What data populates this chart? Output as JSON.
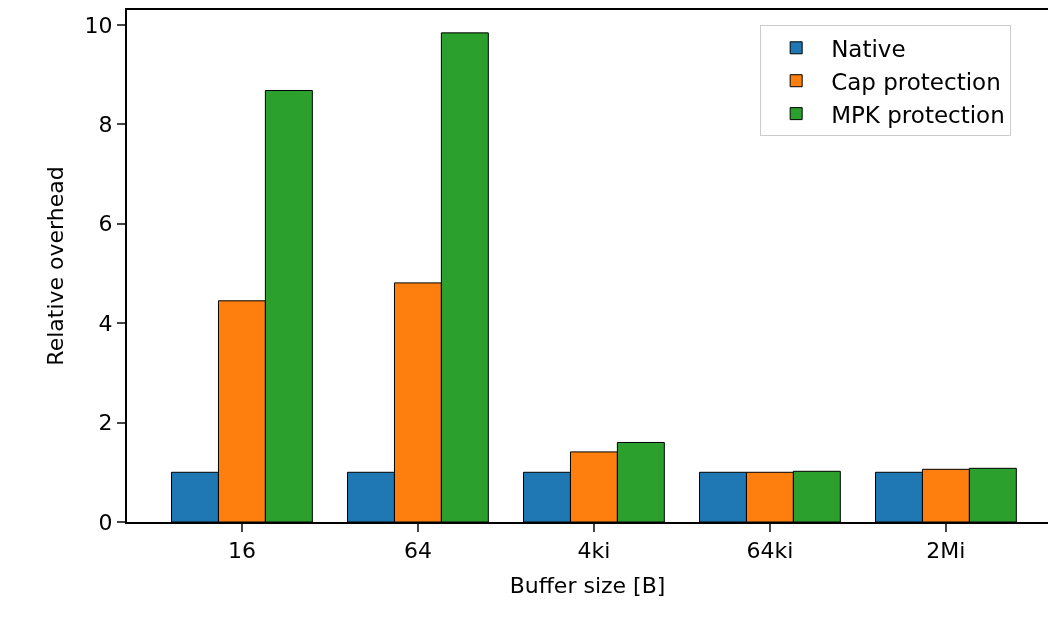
{
  "chart_data": {
    "type": "bar",
    "xlabel": "Buffer size [B]",
    "ylabel": "Relative overhead",
    "categories": [
      "16",
      "64",
      "4ki",
      "64ki",
      "2Mi"
    ],
    "series": [
      {
        "name": "Native",
        "color": "#1f77b4",
        "values": [
          1.0,
          1.0,
          1.0,
          1.0,
          1.0
        ]
      },
      {
        "name": "Cap protection",
        "color": "#ff7f0e",
        "values": [
          4.45,
          4.81,
          1.41,
          1.0,
          1.06
        ]
      },
      {
        "name": "MPK protection",
        "color": "#2ca02c",
        "values": [
          8.68,
          9.84,
          1.6,
          1.02,
          1.08
        ]
      }
    ],
    "ylim": [
      0,
      10.3
    ],
    "yticks": [
      0,
      2,
      4,
      6,
      8,
      10
    ],
    "legend": "top right"
  }
}
